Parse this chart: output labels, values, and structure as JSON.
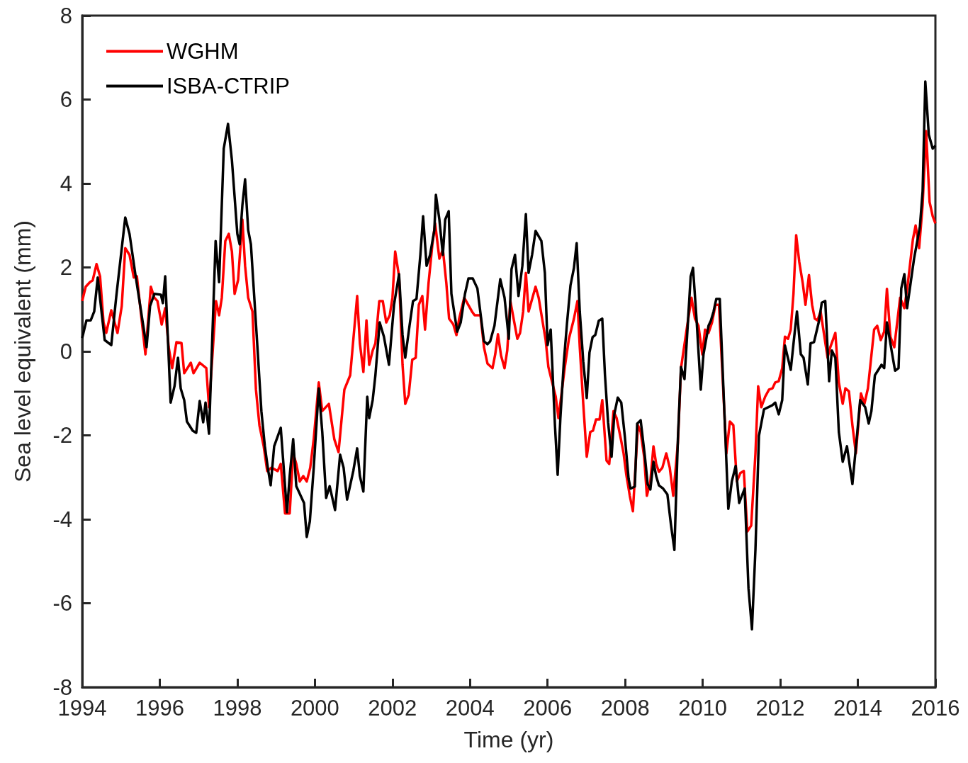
{
  "chart_data": {
    "type": "line",
    "xlabel": "Time (yr)",
    "ylabel": "Sea level equivalent (mm)",
    "xlim": [
      1994,
      2016
    ],
    "xticks": [
      1994,
      1996,
      1998,
      2000,
      2002,
      2004,
      2006,
      2008,
      2010,
      2012,
      2014,
      2016
    ],
    "ylim": [
      -8,
      8
    ],
    "yticks": [
      -8,
      -6,
      -4,
      -2,
      0,
      2,
      4,
      6,
      8
    ],
    "grid": false,
    "legend": "top left",
    "marker": "none",
    "line_style": "solid",
    "series": [
      {
        "name": "WGHM",
        "color": "#ff0000",
        "x": [
          1994.0,
          1994.09,
          1994.2,
          1994.27,
          1994.37,
          1994.46,
          1994.55,
          1994.62,
          1994.75,
          1994.91,
          1995.02,
          1995.11,
          1995.22,
          1995.33,
          1995.41,
          1995.63,
          1995.77,
          1995.86,
          1995.94,
          1996.05,
          1996.14,
          1996.23,
          1996.32,
          1996.43,
          1996.56,
          1996.63,
          1996.8,
          1996.87,
          1997.03,
          1997.2,
          1997.27,
          1997.45,
          1997.53,
          1997.6,
          1997.69,
          1997.78,
          1997.86,
          1997.93,
          1998.02,
          1998.13,
          1998.2,
          1998.28,
          1998.39,
          1998.48,
          1998.57,
          1998.68,
          1998.77,
          1998.88,
          1999.04,
          1999.12,
          1999.23,
          1999.35,
          1999.44,
          1999.52,
          1999.61,
          1999.7,
          1999.79,
          1999.88,
          1999.97,
          2000.1,
          2000.19,
          2000.36,
          2000.5,
          2000.61,
          2000.76,
          2000.91,
          2001.09,
          2001.16,
          2001.25,
          2001.33,
          2001.4,
          2001.49,
          2001.56,
          2001.66,
          2001.75,
          2001.84,
          2001.93,
          2002.0,
          2002.07,
          2002.17,
          2002.26,
          2002.33,
          2002.42,
          2002.51,
          2002.6,
          2002.68,
          2002.77,
          2002.84,
          2002.93,
          2003.03,
          2003.1,
          2003.21,
          2003.3,
          2003.39,
          2003.46,
          2003.57,
          2003.65,
          2003.72,
          2003.85,
          2004.05,
          2004.12,
          2004.27,
          2004.36,
          2004.45,
          2004.58,
          2004.65,
          2004.72,
          2004.8,
          2004.89,
          2004.96,
          2005.04,
          2005.22,
          2005.29,
          2005.37,
          2005.44,
          2005.51,
          2005.69,
          2005.77,
          2005.95,
          2006.02,
          2006.21,
          2006.28,
          2006.35,
          2006.44,
          2006.55,
          2006.68,
          2006.77,
          2006.83,
          2006.92,
          2007.01,
          2007.1,
          2007.17,
          2007.25,
          2007.34,
          2007.41,
          2007.52,
          2007.59,
          2007.7,
          2007.78,
          2007.89,
          2007.96,
          2008.03,
          2008.12,
          2008.2,
          2008.33,
          2008.4,
          2008.49,
          2008.56,
          2008.65,
          2008.73,
          2008.8,
          2008.87,
          2008.96,
          2009.06,
          2009.15,
          2009.24,
          2009.36,
          2009.44,
          2009.6,
          2009.71,
          2009.8,
          2009.89,
          2009.99,
          2010.06,
          2010.15,
          2010.24,
          2010.33,
          2010.42,
          2010.52,
          2010.61,
          2010.7,
          2010.79,
          2010.88,
          2010.97,
          2011.06,
          2011.15,
          2011.25,
          2011.36,
          2011.43,
          2011.51,
          2011.61,
          2011.71,
          2011.8,
          2011.87,
          2011.96,
          2012.05,
          2012.12,
          2012.2,
          2012.27,
          2012.34,
          2012.41,
          2012.49,
          2012.58,
          2012.65,
          2012.74,
          2012.82,
          2012.89,
          2012.96,
          2013.04,
          2013.22,
          2013.29,
          2013.42,
          2013.51,
          2013.61,
          2013.68,
          2013.77,
          2013.86,
          2013.95,
          2014.08,
          2014.17,
          2014.26,
          2014.42,
          2014.5,
          2014.59,
          2014.68,
          2014.75,
          2014.84,
          2014.94,
          2015.09,
          2015.2,
          2015.29,
          2015.42,
          2015.49,
          2015.58,
          2015.67,
          2015.76,
          2015.85,
          2015.93,
          2016.0
        ],
        "values": [
          1.2,
          1.54,
          1.65,
          1.69,
          2.08,
          1.79,
          0.69,
          0.44,
          0.98,
          0.44,
          1.08,
          2.46,
          2.3,
          1.76,
          1.79,
          -0.07,
          1.54,
          1.28,
          1.2,
          0.64,
          1.03,
          0.1,
          -0.4,
          0.22,
          0.2,
          -0.52,
          -0.27,
          -0.52,
          -0.27,
          -0.4,
          -1.33,
          1.2,
          0.86,
          1.28,
          2.63,
          2.8,
          2.38,
          1.37,
          1.7,
          3.14,
          2.04,
          1.28,
          0.95,
          -0.91,
          -1.76,
          -2.26,
          -2.85,
          -2.77,
          -2.85,
          -2.68,
          -3.86,
          -3.86,
          -2.43,
          -2.68,
          -3.1,
          -2.97,
          -3.1,
          -2.77,
          -2.09,
          -0.74,
          -1.42,
          -1.25,
          -2.09,
          -2.4,
          -0.91,
          -0.57,
          1.32,
          0.19,
          -0.49,
          0.74,
          -0.32,
          0.02,
          0.19,
          1.2,
          1.2,
          0.69,
          0.86,
          1.28,
          2.38,
          1.79,
          -0.32,
          -1.25,
          -1.03,
          -0.2,
          -0.15,
          1.11,
          1.32,
          0.52,
          1.62,
          2.55,
          3.05,
          2.21,
          2.43,
          1.62,
          0.78,
          0.64,
          0.39,
          0.78,
          1.28,
          0.95,
          0.86,
          0.86,
          0.1,
          -0.29,
          -0.4,
          -0.07,
          0.41,
          -0.1,
          -0.4,
          0.02,
          1.2,
          0.3,
          0.44,
          0.95,
          1.87,
          0.95,
          1.54,
          1.28,
          0.27,
          -0.37,
          -1.08,
          -1.59,
          -1.08,
          -0.4,
          0.3,
          0.78,
          1.2,
          0.1,
          -1.25,
          -2.51,
          -1.92,
          -1.89,
          -1.62,
          -1.62,
          -1.16,
          -2.6,
          -2.68,
          -1.42,
          -1.59,
          -2.09,
          -2.43,
          -2.94,
          -3.44,
          -3.81,
          -1.76,
          -1.92,
          -2.51,
          -3.44,
          -3.1,
          -2.26,
          -2.68,
          -2.87,
          -2.77,
          -2.43,
          -2.77,
          -3.44,
          -2.18,
          -0.4,
          0.61,
          1.28,
          0.78,
          0.61,
          -0.07,
          0.52,
          0.44,
          0.69,
          1.11,
          1.11,
          -0.74,
          -2.43,
          -1.67,
          -1.76,
          -3.1,
          -2.9,
          -2.85,
          -4.29,
          -4.15,
          -2.43,
          -0.83,
          -1.33,
          -1.08,
          -0.91,
          -0.88,
          -0.74,
          -0.71,
          -0.4,
          0.35,
          0.3,
          0.52,
          1.37,
          2.77,
          2.13,
          1.62,
          1.11,
          1.82,
          1.11,
          0.78,
          0.74,
          0.95,
          -0.15,
          0.1,
          0.44,
          -0.74,
          -1.25,
          -0.88,
          -0.95,
          -1.76,
          -2.43,
          -1.0,
          -1.25,
          -0.88,
          0.52,
          0.61,
          0.27,
          0.47,
          1.49,
          0.35,
          0.1,
          1.28,
          1.03,
          1.62,
          2.67,
          3.0,
          2.46,
          3.48,
          5.25,
          3.56,
          3.22,
          3.05
        ]
      },
      {
        "name": "ISBA-CTRIP",
        "color": "#000000",
        "x": [
          1994.0,
          1994.11,
          1994.22,
          1994.31,
          1994.4,
          1994.58,
          1994.75,
          1994.88,
          1995.11,
          1995.22,
          1995.37,
          1995.66,
          1995.75,
          1995.86,
          1996.03,
          1996.08,
          1996.14,
          1996.28,
          1996.38,
          1996.47,
          1996.54,
          1996.63,
          1996.7,
          1996.85,
          1996.94,
          1997.03,
          1997.12,
          1997.18,
          1997.27,
          1997.44,
          1997.53,
          1997.65,
          1997.76,
          1997.86,
          1998.0,
          1998.06,
          1998.13,
          1998.2,
          1998.28,
          1998.35,
          1998.53,
          1998.62,
          1998.71,
          1998.79,
          1998.86,
          1998.95,
          1999.12,
          1999.28,
          1999.35,
          1999.44,
          1999.52,
          1999.72,
          1999.79,
          1999.87,
          1999.97,
          2000.1,
          2000.19,
          2000.29,
          2000.38,
          2000.52,
          2000.65,
          2000.74,
          2000.83,
          2000.99,
          2001.09,
          2001.16,
          2001.25,
          2001.35,
          2001.4,
          2001.49,
          2001.56,
          2001.67,
          2001.78,
          2001.91,
          2002.04,
          2002.17,
          2002.26,
          2002.33,
          2002.44,
          2002.53,
          2002.62,
          2002.72,
          2002.79,
          2002.88,
          2002.97,
          2003.08,
          2003.12,
          2003.21,
          2003.3,
          2003.36,
          2003.45,
          2003.52,
          2003.67,
          2003.76,
          2003.87,
          2003.96,
          2004.07,
          2004.19,
          2004.36,
          2004.45,
          2004.52,
          2004.63,
          2004.78,
          2004.89,
          2005.0,
          2005.07,
          2005.16,
          2005.25,
          2005.35,
          2005.44,
          2005.51,
          2005.6,
          2005.69,
          2005.84,
          2005.93,
          2006.0,
          2006.08,
          2006.19,
          2006.26,
          2006.33,
          2006.42,
          2006.5,
          2006.59,
          2006.68,
          2006.75,
          2006.83,
          2006.92,
          2007.01,
          2007.08,
          2007.16,
          2007.23,
          2007.32,
          2007.41,
          2007.48,
          2007.56,
          2007.65,
          2007.72,
          2007.81,
          2007.9,
          2007.99,
          2008.09,
          2008.14,
          2008.25,
          2008.31,
          2008.4,
          2008.51,
          2008.58,
          2008.65,
          2008.73,
          2008.8,
          2008.87,
          2008.98,
          2009.09,
          2009.18,
          2009.27,
          2009.36,
          2009.44,
          2009.53,
          2009.69,
          2009.75,
          2009.84,
          2009.95,
          2010.02,
          2010.15,
          2010.21,
          2010.28,
          2010.35,
          2010.44,
          2010.66,
          2010.75,
          2010.85,
          2010.94,
          2011.08,
          2011.18,
          2011.27,
          2011.36,
          2011.45,
          2011.58,
          2011.8,
          2011.87,
          2011.96,
          2012.05,
          2012.12,
          2012.27,
          2012.36,
          2012.43,
          2012.53,
          2012.6,
          2012.71,
          2012.78,
          2012.87,
          2013.0,
          2013.07,
          2013.16,
          2013.26,
          2013.33,
          2013.42,
          2013.51,
          2013.61,
          2013.72,
          2013.86,
          2013.97,
          2014.06,
          2014.19,
          2014.28,
          2014.35,
          2014.44,
          2014.61,
          2014.68,
          2014.75,
          2014.87,
          2014.96,
          2015.05,
          2015.12,
          2015.2,
          2015.27,
          2015.36,
          2015.45,
          2015.6,
          2015.67,
          2015.74,
          2015.83,
          2015.93,
          2016.0
        ],
        "values": [
          0.32,
          0.74,
          0.74,
          0.95,
          1.76,
          0.27,
          0.15,
          1.32,
          3.19,
          2.8,
          1.84,
          0.1,
          1.08,
          1.37,
          1.35,
          1.15,
          1.79,
          -1.22,
          -0.83,
          -0.15,
          -0.88,
          -1.16,
          -1.67,
          -1.89,
          -1.94,
          -1.18,
          -1.69,
          -1.22,
          -1.96,
          2.63,
          1.65,
          4.83,
          5.42,
          4.56,
          2.8,
          2.55,
          3.48,
          4.1,
          2.89,
          2.55,
          -0.07,
          -1.42,
          -2.26,
          -2.8,
          -3.19,
          -2.26,
          -1.82,
          -3.83,
          -2.97,
          -2.09,
          -3.21,
          -3.61,
          -4.42,
          -4.05,
          -2.77,
          -0.88,
          -1.92,
          -3.49,
          -3.21,
          -3.78,
          -2.46,
          -2.77,
          -3.53,
          -2.85,
          -2.31,
          -2.97,
          -3.34,
          -1.08,
          -1.59,
          -1.16,
          -0.57,
          0.69,
          0.35,
          -0.32,
          1.11,
          1.84,
          0.39,
          -0.15,
          0.61,
          1.2,
          1.25,
          2.3,
          3.22,
          2.04,
          2.3,
          2.89,
          3.73,
          3.14,
          2.3,
          3.14,
          3.34,
          1.37,
          0.47,
          0.69,
          1.37,
          1.74,
          1.74,
          1.5,
          0.24,
          0.17,
          0.24,
          0.61,
          1.72,
          1.28,
          0.3,
          1.96,
          2.3,
          1.32,
          2.04,
          3.27,
          1.87,
          2.3,
          2.87,
          2.63,
          1.87,
          0.15,
          0.52,
          -1.76,
          -2.94,
          -1.59,
          -0.24,
          0.66,
          1.57,
          1.99,
          2.58,
          0.95,
          -0.24,
          -1.11,
          -0.03,
          0.34,
          0.39,
          0.73,
          0.78,
          -0.57,
          -1.69,
          -2.51,
          -1.5,
          -1.1,
          -1.22,
          -2.01,
          -3.04,
          -3.27,
          -3.22,
          -1.72,
          -1.64,
          -2.51,
          -3.16,
          -3.29,
          -2.63,
          -2.97,
          -3.19,
          -3.27,
          -3.41,
          -4.12,
          -4.73,
          -2.09,
          -0.37,
          -0.66,
          1.79,
          1.99,
          0.78,
          -0.91,
          -0.07,
          0.61,
          0.73,
          0.95,
          1.25,
          1.25,
          -3.75,
          -3.1,
          -2.73,
          -3.61,
          -3.27,
          -5.64,
          -6.62,
          -4.71,
          -2.01,
          -1.38,
          -1.28,
          -1.22,
          -1.5,
          -1.16,
          0.14,
          -0.44,
          0.35,
          0.95,
          -0.07,
          -0.15,
          -0.79,
          0.19,
          0.22,
          0.73,
          1.16,
          1.2,
          -0.71,
          0.02,
          -0.15,
          -1.92,
          -2.63,
          -2.26,
          -3.16,
          -2.09,
          -1.16,
          -1.33,
          -1.72,
          -1.42,
          -0.57,
          -0.32,
          -0.4,
          0.69,
          0.02,
          -0.46,
          -0.4,
          1.5,
          1.84,
          1.03,
          1.62,
          2.21,
          2.97,
          3.81,
          6.43,
          5.16,
          4.83,
          4.9
        ]
      }
    ]
  }
}
